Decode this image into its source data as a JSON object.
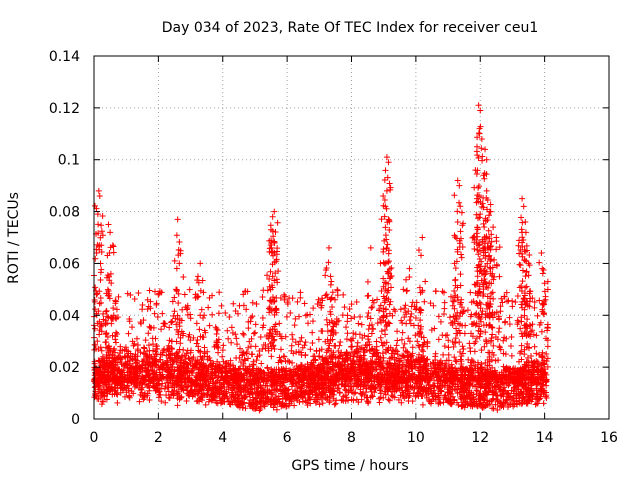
{
  "chart_data": {
    "type": "scatter",
    "title": "Day 034 of 2023, Rate Of TEC Index for receiver ceu1",
    "xlabel": "GPS time / hours",
    "ylabel": "ROTI / TECUs",
    "xlim": [
      0,
      16
    ],
    "ylim": [
      0,
      0.14
    ],
    "grid": true,
    "marker": "+",
    "color": "#ff0000",
    "xticks": [
      0,
      2,
      4,
      6,
      8,
      10,
      12,
      14,
      16
    ],
    "xtick_labels": [
      "0",
      "2",
      "4",
      "6",
      "8",
      "10",
      "12",
      "14",
      "16"
    ],
    "yticks": [
      0,
      0.02,
      0.04,
      0.06,
      0.08,
      0.1,
      0.12,
      0.14
    ],
    "ytick_labels": [
      "0",
      "0.02",
      "0.04",
      "0.06",
      "0.08",
      "0.1",
      "0.12",
      "0.14"
    ],
    "data_x_range": [
      0,
      14.1
    ],
    "series": [
      {
        "name": "ROTI",
        "baseline_band": [
          0.005,
          0.02
        ],
        "notable_points": [
          {
            "x": 0.15,
            "y": 0.088
          },
          {
            "x": 0.18,
            "y": 0.086
          },
          {
            "x": 0.12,
            "y": 0.079
          },
          {
            "x": 0.45,
            "y": 0.075
          },
          {
            "x": 0.5,
            "y": 0.072
          },
          {
            "x": 0.48,
            "y": 0.064
          },
          {
            "x": 2.6,
            "y": 0.077
          },
          {
            "x": 2.65,
            "y": 0.06
          },
          {
            "x": 3.3,
            "y": 0.06
          },
          {
            "x": 5.6,
            "y": 0.08
          },
          {
            "x": 5.55,
            "y": 0.078
          },
          {
            "x": 5.5,
            "y": 0.073
          },
          {
            "x": 5.6,
            "y": 0.068
          },
          {
            "x": 5.55,
            "y": 0.055
          },
          {
            "x": 7.3,
            "y": 0.066
          },
          {
            "x": 7.35,
            "y": 0.055
          },
          {
            "x": 8.6,
            "y": 0.066
          },
          {
            "x": 8.9,
            "y": 0.06
          },
          {
            "x": 9.1,
            "y": 0.101
          },
          {
            "x": 9.15,
            "y": 0.099
          },
          {
            "x": 9.1,
            "y": 0.088
          },
          {
            "x": 9.05,
            "y": 0.082
          },
          {
            "x": 9.15,
            "y": 0.077
          },
          {
            "x": 10.2,
            "y": 0.07
          },
          {
            "x": 9.8,
            "y": 0.058
          },
          {
            "x": 11.3,
            "y": 0.092
          },
          {
            "x": 11.35,
            "y": 0.09
          },
          {
            "x": 11.3,
            "y": 0.076
          },
          {
            "x": 11.2,
            "y": 0.06
          },
          {
            "x": 11.95,
            "y": 0.121
          },
          {
            "x": 12.0,
            "y": 0.119
          },
          {
            "x": 11.98,
            "y": 0.112
          },
          {
            "x": 12.05,
            "y": 0.108
          },
          {
            "x": 11.9,
            "y": 0.105
          },
          {
            "x": 12.15,
            "y": 0.104
          },
          {
            "x": 12.2,
            "y": 0.1
          },
          {
            "x": 11.85,
            "y": 0.096
          },
          {
            "x": 12.1,
            "y": 0.094
          },
          {
            "x": 12.2,
            "y": 0.088
          },
          {
            "x": 11.9,
            "y": 0.085
          },
          {
            "x": 12.3,
            "y": 0.08
          },
          {
            "x": 12.4,
            "y": 0.074
          },
          {
            "x": 12.5,
            "y": 0.07
          },
          {
            "x": 12.3,
            "y": 0.066
          },
          {
            "x": 13.3,
            "y": 0.085
          },
          {
            "x": 13.35,
            "y": 0.082
          },
          {
            "x": 13.4,
            "y": 0.076
          },
          {
            "x": 13.3,
            "y": 0.072
          },
          {
            "x": 13.45,
            "y": 0.065
          },
          {
            "x": 13.5,
            "y": 0.06
          },
          {
            "x": 13.9,
            "y": 0.064
          },
          {
            "x": 14.1,
            "y": 0.053
          }
        ]
      }
    ]
  }
}
